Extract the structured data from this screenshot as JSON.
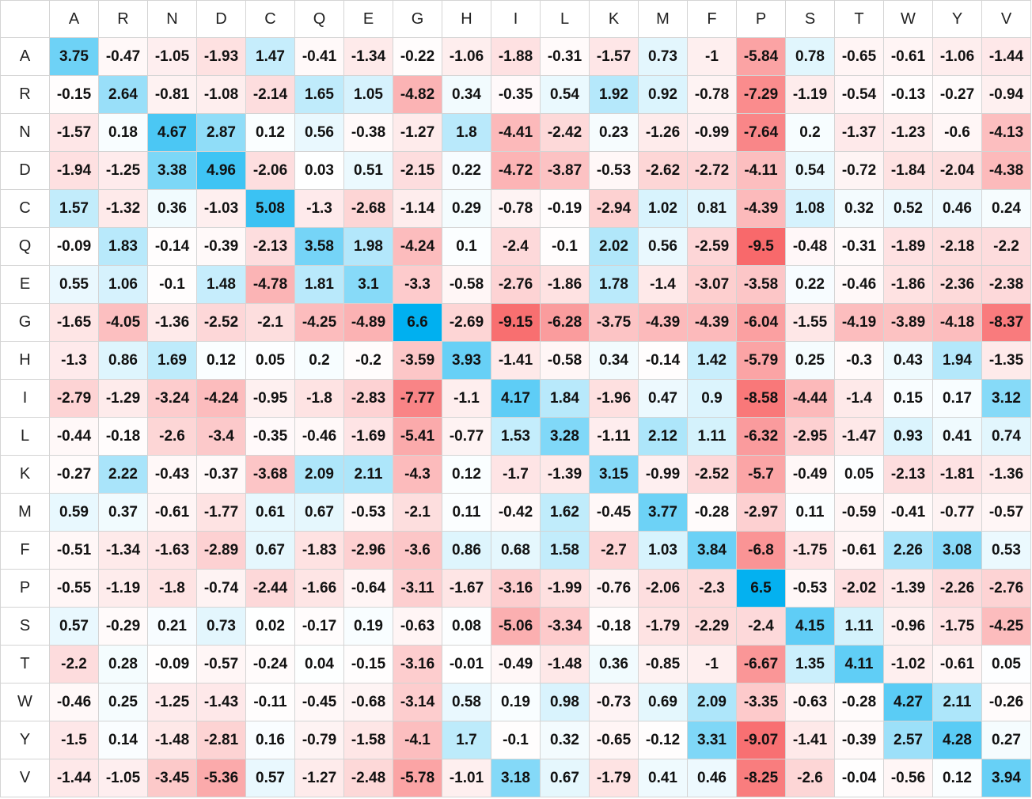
{
  "chart_data": {
    "type": "heatmap",
    "title": "",
    "xlabel": "",
    "ylabel": "",
    "columns": [
      "A",
      "R",
      "N",
      "D",
      "C",
      "Q",
      "E",
      "G",
      "H",
      "I",
      "L",
      "K",
      "M",
      "F",
      "P",
      "S",
      "T",
      "W",
      "Y",
      "V"
    ],
    "rows": [
      "A",
      "R",
      "N",
      "D",
      "C",
      "Q",
      "E",
      "G",
      "H",
      "I",
      "L",
      "K",
      "M",
      "F",
      "P",
      "S",
      "T",
      "W",
      "Y",
      "V"
    ],
    "values": [
      [
        3.75,
        -0.47,
        -1.05,
        -1.93,
        1.47,
        -0.41,
        -1.34,
        -0.22,
        -1.06,
        -1.88,
        -0.31,
        -1.57,
        0.73,
        -1,
        -5.84,
        0.78,
        -0.65,
        -0.61,
        -1.06,
        -1.44
      ],
      [
        -0.15,
        2.64,
        -0.81,
        -1.08,
        -2.14,
        1.65,
        1.05,
        -4.82,
        0.34,
        -0.35,
        0.54,
        1.92,
        0.92,
        -0.78,
        -7.29,
        -1.19,
        -0.54,
        -0.13,
        -0.27,
        -0.94
      ],
      [
        -1.57,
        0.18,
        4.67,
        2.87,
        0.12,
        0.56,
        -0.38,
        -1.27,
        1.8,
        -4.41,
        -2.42,
        0.23,
        -1.26,
        -0.99,
        -7.64,
        0.2,
        -1.37,
        -1.23,
        -0.6,
        -4.13
      ],
      [
        -1.94,
        -1.25,
        3.38,
        4.96,
        -2.06,
        0.03,
        0.51,
        -2.15,
        0.22,
        -4.72,
        -3.87,
        -0.53,
        -2.62,
        -2.72,
        -4.11,
        0.54,
        -0.72,
        -1.84,
        -2.04,
        -4.38
      ],
      [
        1.57,
        -1.32,
        0.36,
        -1.03,
        5.08,
        -1.3,
        -2.68,
        -1.14,
        0.29,
        -0.78,
        -0.19,
        -2.94,
        1.02,
        0.81,
        -4.39,
        1.08,
        0.32,
        0.52,
        0.46,
        0.24
      ],
      [
        -0.09,
        1.83,
        -0.14,
        -0.39,
        -2.13,
        3.58,
        1.98,
        -4.24,
        0.1,
        -2.4,
        -0.1,
        2.02,
        0.56,
        -2.59,
        -9.5,
        -0.48,
        -0.31,
        -1.89,
        -2.18,
        -2.2
      ],
      [
        0.55,
        1.06,
        -0.1,
        1.48,
        -4.78,
        1.81,
        3.1,
        -3.3,
        -0.58,
        -2.76,
        -1.86,
        1.78,
        -1.4,
        -3.07,
        -3.58,
        0.22,
        -0.46,
        -1.86,
        -2.36,
        -2.38
      ],
      [
        -1.65,
        -4.05,
        -1.36,
        -2.52,
        -2.1,
        -4.25,
        -4.89,
        6.6,
        -2.69,
        -9.15,
        -6.28,
        -3.75,
        -4.39,
        -4.39,
        -6.04,
        -1.55,
        -4.19,
        -3.89,
        -4.18,
        -8.37
      ],
      [
        -1.3,
        0.86,
        1.69,
        0.12,
        0.05,
        0.2,
        -0.2,
        -3.59,
        3.93,
        -1.41,
        -0.58,
        0.34,
        -0.14,
        1.42,
        -5.79,
        0.25,
        -0.3,
        0.43,
        1.94,
        -1.35
      ],
      [
        -2.79,
        -1.29,
        -3.24,
        -4.24,
        -0.95,
        -1.8,
        -2.83,
        -7.77,
        -1.1,
        4.17,
        1.84,
        -1.96,
        0.47,
        0.9,
        -8.58,
        -4.44,
        -1.4,
        0.15,
        0.17,
        3.12
      ],
      [
        -0.44,
        -0.18,
        -2.6,
        -3.4,
        -0.35,
        -0.46,
        -1.69,
        -5.41,
        -0.77,
        1.53,
        3.28,
        -1.11,
        2.12,
        1.11,
        -6.32,
        -2.95,
        -1.47,
        0.93,
        0.41,
        0.74
      ],
      [
        -0.27,
        2.22,
        -0.43,
        -0.37,
        -3.68,
        2.09,
        2.11,
        -4.3,
        0.12,
        -1.7,
        -1.39,
        3.15,
        -0.99,
        -2.52,
        -5.7,
        -0.49,
        0.05,
        -2.13,
        -1.81,
        -1.36
      ],
      [
        0.59,
        0.37,
        -0.61,
        -1.77,
        0.61,
        0.67,
        -0.53,
        -2.1,
        0.11,
        -0.42,
        1.62,
        -0.45,
        3.77,
        -0.28,
        -2.97,
        0.11,
        -0.59,
        -0.41,
        -0.77,
        -0.57
      ],
      [
        -0.51,
        -1.34,
        -1.63,
        -2.89,
        0.67,
        -1.83,
        -2.96,
        -3.6,
        0.86,
        0.68,
        1.58,
        -2.7,
        1.03,
        3.84,
        -6.8,
        -1.75,
        -0.61,
        2.26,
        3.08,
        0.53
      ],
      [
        -0.55,
        -1.19,
        -1.8,
        -0.74,
        -2.44,
        -1.66,
        -0.64,
        -3.11,
        -1.67,
        -3.16,
        -1.99,
        -0.76,
        -2.06,
        -2.3,
        6.5,
        -0.53,
        -2.02,
        -1.39,
        -2.26,
        -2.76
      ],
      [
        0.57,
        -0.29,
        0.21,
        0.73,
        0.02,
        -0.17,
        0.19,
        -0.63,
        0.08,
        -5.06,
        -3.34,
        -0.18,
        -1.79,
        -2.29,
        -2.4,
        4.15,
        1.11,
        -0.96,
        -1.75,
        -4.25
      ],
      [
        -2.2,
        0.28,
        -0.09,
        -0.57,
        -0.24,
        0.04,
        -0.15,
        -3.16,
        -0.01,
        -0.49,
        -1.48,
        0.36,
        -0.85,
        -1,
        -6.67,
        1.35,
        4.11,
        -1.02,
        -0.61,
        0.05
      ],
      [
        -0.46,
        0.25,
        -1.25,
        -1.43,
        -0.11,
        -0.45,
        -0.68,
        -3.14,
        0.58,
        0.19,
        0.98,
        -0.73,
        0.69,
        2.09,
        -3.35,
        -0.63,
        -0.28,
        4.27,
        2.11,
        -0.26
      ],
      [
        -1.5,
        0.14,
        -1.48,
        -2.81,
        0.16,
        -0.79,
        -1.58,
        -4.1,
        1.7,
        -0.1,
        0.32,
        -0.65,
        -0.12,
        3.31,
        -9.07,
        -1.41,
        -0.39,
        2.57,
        4.28,
        0.27
      ],
      [
        -1.44,
        -1.05,
        -3.45,
        -5.36,
        0.57,
        -1.27,
        -2.48,
        -5.78,
        -1.01,
        3.18,
        0.67,
        -1.79,
        0.41,
        0.46,
        -8.25,
        -2.6,
        -0.04,
        -0.56,
        0.12,
        3.94
      ]
    ],
    "color_scale": {
      "positive": "#00b0f0",
      "negative": "#f8696b",
      "neutral": "#ffffff",
      "max": 6.6,
      "min": -9.5
    }
  }
}
